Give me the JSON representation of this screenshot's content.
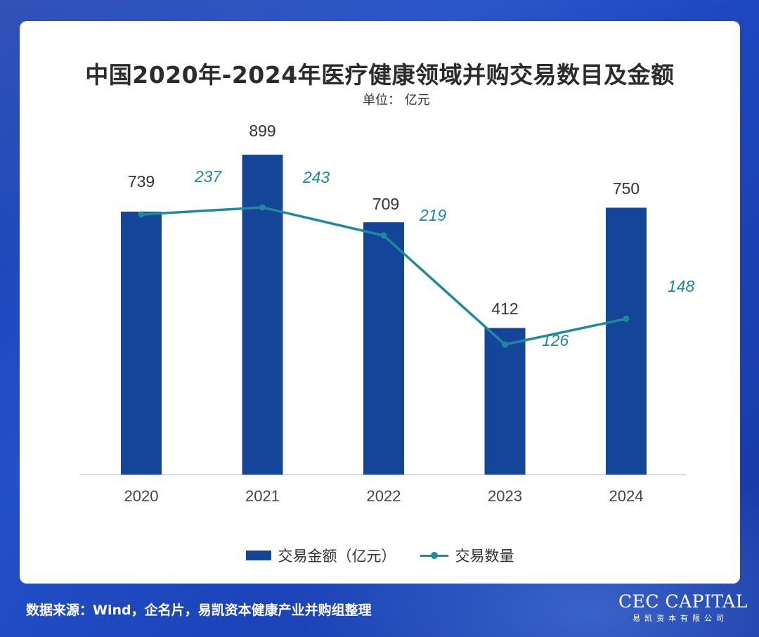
{
  "title": "中国2020年-2024年医疗健康领域并购交易数目及金额",
  "subtitle": "单位： 亿元",
  "source": "数据来源：Wind，企名片，易凯资本健康产业并购组整理",
  "logo": {
    "main": "CEC CAPITAL",
    "sub": "易凯资本有限公司"
  },
  "colors": {
    "bar": "#154598",
    "line": "#1f8a9e",
    "background": "#1d45bb"
  },
  "chart_data": {
    "type": "bar",
    "categories": [
      "2020",
      "2021",
      "2022",
      "2023",
      "2024"
    ],
    "series": [
      {
        "name": "交易金额（亿元）",
        "type": "bar",
        "values": [
          739,
          899,
          709,
          412,
          750
        ]
      },
      {
        "name": "交易数量",
        "type": "line",
        "values": [
          237,
          243,
          219,
          126,
          148
        ]
      }
    ],
    "legend": [
      "交易金额（亿元）",
      "交易数量"
    ],
    "legend_position": "bottom",
    "grid": false
  }
}
